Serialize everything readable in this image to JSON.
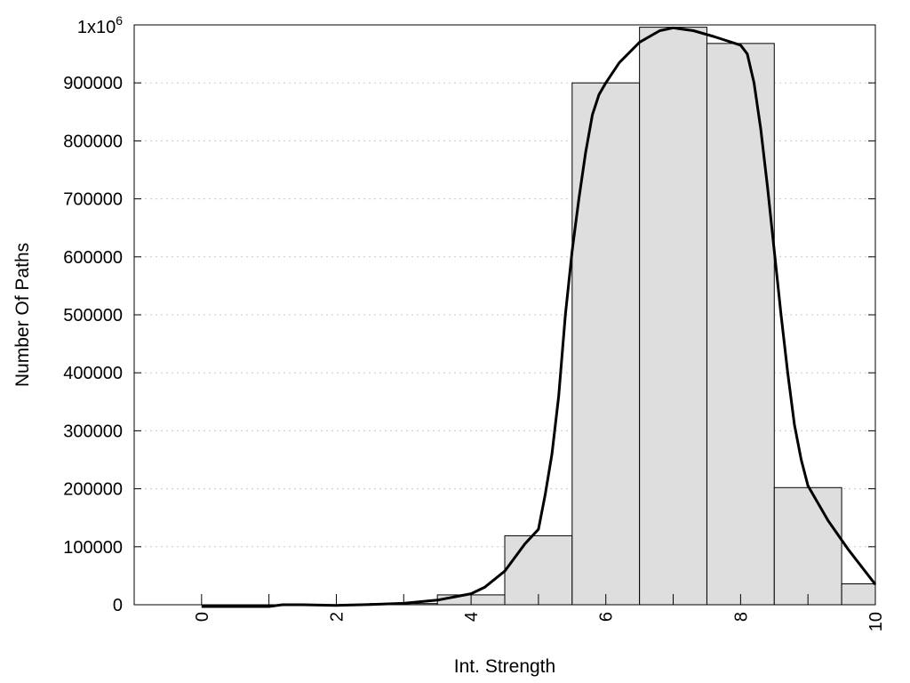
{
  "chart_data": {
    "type": "bar",
    "xlabel": "Int. Strength",
    "ylabel": "Number Of Paths",
    "xlim": [
      -1,
      10
    ],
    "ylim": [
      0,
      1000000
    ],
    "grid": "horizontal dotted",
    "bar_width": 1,
    "bars": {
      "x": [
        0,
        1,
        2,
        3,
        4,
        5,
        6,
        7,
        8,
        9,
        10
      ],
      "values": [
        0,
        0,
        0,
        2000,
        17000,
        119000,
        900000,
        996000,
        968000,
        202000,
        36000
      ]
    },
    "series": [
      {
        "type": "line",
        "x": [
          0,
          0.5,
          1,
          1.2,
          1.5,
          2,
          2.5,
          3,
          3.5,
          4,
          4.2,
          4.5,
          4.8,
          5,
          5.1,
          5.2,
          5.3,
          5.4,
          5.5,
          5.6,
          5.7,
          5.8,
          5.9,
          6,
          6.2,
          6.5,
          6.8,
          7,
          7.3,
          7.6,
          8,
          8.1,
          8.2,
          8.3,
          8.4,
          8.5,
          8.6,
          8.7,
          8.8,
          8.9,
          9,
          9.3,
          9.6,
          10
        ],
        "values": [
          -3000,
          -3000,
          -3000,
          0,
          0,
          -1000,
          500,
          2500,
          8000,
          19000,
          30000,
          58000,
          105000,
          130000,
          190000,
          260000,
          360000,
          500000,
          610000,
          700000,
          780000,
          845000,
          880000,
          900000,
          935000,
          970000,
          990000,
          995000,
          990000,
          980000,
          965000,
          950000,
          900000,
          820000,
          720000,
          610000,
          500000,
          400000,
          310000,
          250000,
          205000,
          145000,
          95000,
          35000
        ]
      }
    ],
    "yticks": [
      {
        "value": 0,
        "label": "0"
      },
      {
        "value": 100000,
        "label": "100000"
      },
      {
        "value": 200000,
        "label": "200000"
      },
      {
        "value": 300000,
        "label": "300000"
      },
      {
        "value": 400000,
        "label": "400000"
      },
      {
        "value": 500000,
        "label": "500000"
      },
      {
        "value": 600000,
        "label": "600000"
      },
      {
        "value": 700000,
        "label": "700000"
      },
      {
        "value": 800000,
        "label": "800000"
      },
      {
        "value": 900000,
        "label": "900000"
      }
    ],
    "ytop_label": {
      "base": "1x10",
      "exponent": "6"
    },
    "xticks": [
      {
        "value": 0,
        "label": "0"
      },
      {
        "value": 2,
        "label": "2"
      },
      {
        "value": 4,
        "label": "4"
      },
      {
        "value": 6,
        "label": "6"
      },
      {
        "value": 8,
        "label": "8"
      },
      {
        "value": 10,
        "label": "10"
      }
    ],
    "minor_xticks": [
      1,
      3,
      5,
      7,
      9
    ]
  }
}
